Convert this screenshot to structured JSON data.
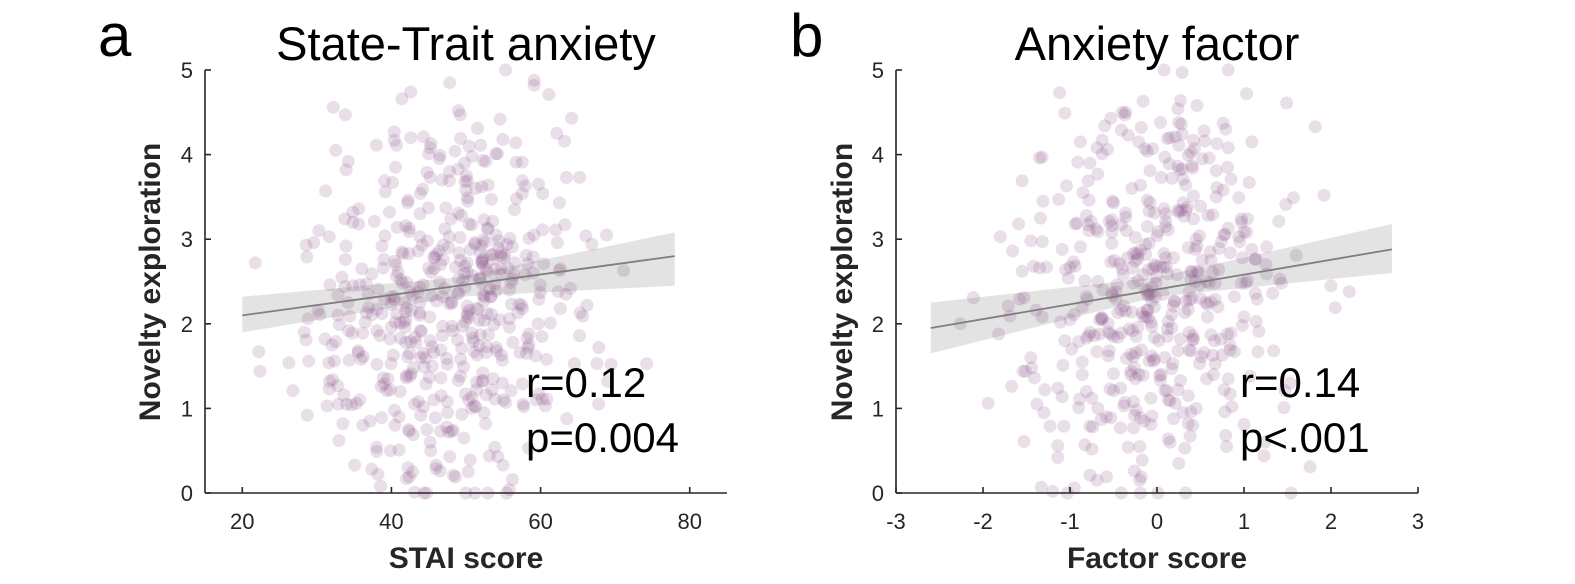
{
  "chart_data": [
    {
      "type": "scatter",
      "panel_letter": "a",
      "title": "State-Trait anxiety",
      "xlabel": "STAI score",
      "ylabel": "Novelty exploration",
      "xlim": [
        15,
        85
      ],
      "ylim": [
        0,
        5
      ],
      "xticks": [
        "20",
        "40",
        "60",
        "80"
      ],
      "yticks": [
        "0",
        "1",
        "2",
        "3",
        "4",
        "5"
      ],
      "grid": false,
      "point_color": "#7b3f7b",
      "fit_color": "#7f7f7f",
      "band_color": "#d9d9d9",
      "fit_line": {
        "x": [
          20,
          78
        ],
        "y": [
          2.1,
          2.8
        ]
      },
      "confidence_band": {
        "x": [
          20,
          49,
          78
        ],
        "lower": [
          1.9,
          2.32,
          2.45
        ],
        "upper": [
          2.32,
          2.55,
          3.08
        ]
      },
      "stats": {
        "r": "r=0.12",
        "p": "p=0.004"
      },
      "points": {
        "x": [],
        "y": [],
        "n_seed": 520
      }
    },
    {
      "type": "scatter",
      "panel_letter": "b",
      "title": "Anxiety factor",
      "xlabel": "Factor score",
      "ylabel": "Novelty exploration",
      "xlim": [
        -3,
        3
      ],
      "ylim": [
        0,
        5
      ],
      "xticks": [
        "-3",
        "-2",
        "-1",
        "0",
        "1",
        "2",
        "3"
      ],
      "yticks": [
        "0",
        "1",
        "2",
        "3",
        "4",
        "5"
      ],
      "grid": false,
      "point_color": "#7b3f7b",
      "fit_color": "#7f7f7f",
      "band_color": "#d9d9d9",
      "fit_line": {
        "x": [
          -2.6,
          2.7
        ],
        "y": [
          1.95,
          2.88
        ]
      },
      "confidence_band": {
        "x": [
          -2.6,
          0,
          2.7
        ],
        "lower": [
          1.65,
          2.32,
          2.6
        ],
        "upper": [
          2.25,
          2.55,
          3.18
        ]
      },
      "stats": {
        "r": "r=0.14",
        "p": "p<.001"
      },
      "points": {
        "x": [],
        "y": [],
        "n_seed": 480
      }
    }
  ]
}
